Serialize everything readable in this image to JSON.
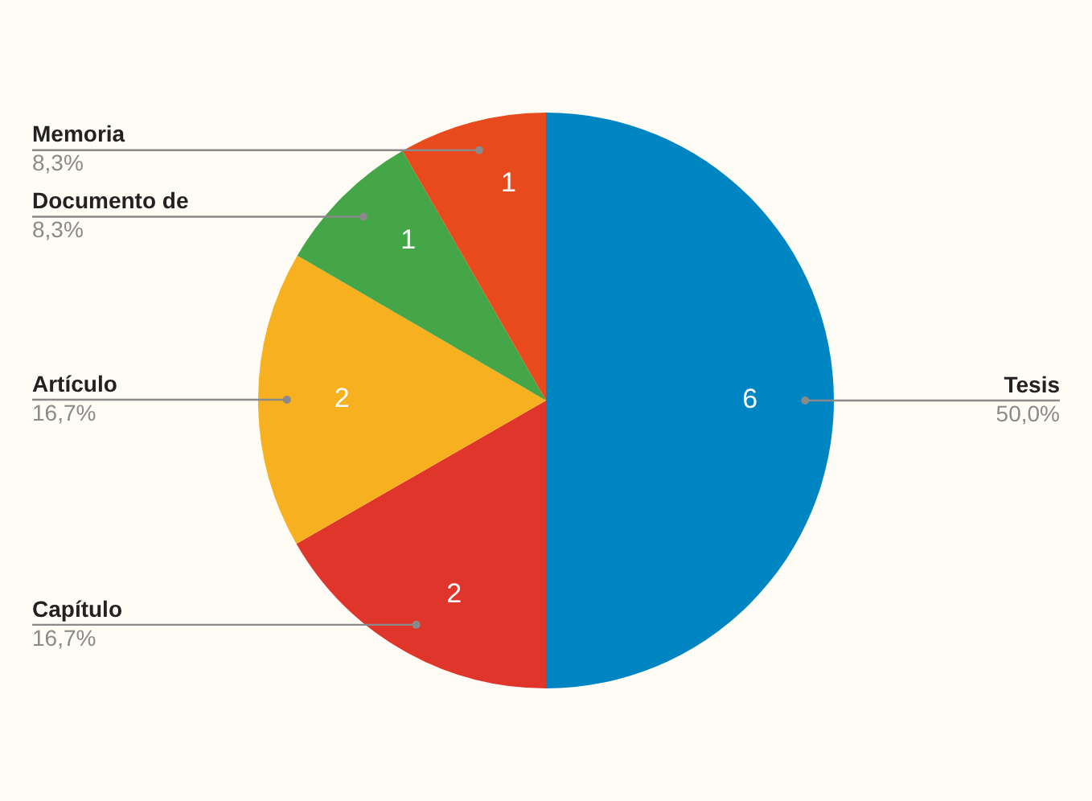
{
  "chart_data": {
    "type": "pie",
    "categories": [
      "Tesis",
      "Capítulo",
      "Artículo",
      "Documento de",
      "Memoria"
    ],
    "values": [
      50,
      16.7,
      16.7,
      8.3,
      8.3
    ],
    "colors": [
      "#0085c3",
      "#e0352b",
      "#f7b020",
      "#44a647",
      "#e8491d"
    ],
    "value_labels": [
      "50,0%",
      "16,7%",
      "16,7%",
      "8,3%",
      "8,3%"
    ],
    "annotations": [
      {
        "text": "6",
        "x": "Tesis"
      },
      {
        "text": "2",
        "x": "Capítulo"
      },
      {
        "text": "2",
        "x": "Artículo"
      },
      {
        "text": "1",
        "x": "Documento de"
      },
      {
        "text": "1",
        "x": "Memoria"
      }
    ]
  }
}
